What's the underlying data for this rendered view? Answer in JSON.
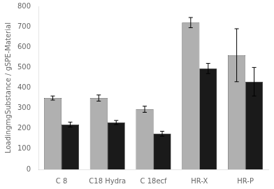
{
  "chart_data": {
    "type": "bar",
    "categories": [
      "C 8",
      "C18 Hydra",
      "C 18ecf",
      "HR-X",
      "HR-P"
    ],
    "series": [
      {
        "color": "#b0b0b0",
        "values": [
          350,
          350,
          295,
          720,
          560
        ],
        "errors": [
          10,
          15,
          15,
          25,
          130
        ]
      },
      {
        "color": "#1a1a1a",
        "values": [
          220,
          230,
          175,
          495,
          430
        ],
        "errors": [
          12,
          10,
          12,
          25,
          70
        ]
      }
    ],
    "ylabel": "LoadingmgSubstance / gSPE-Material",
    "ylim": [
      0,
      800
    ],
    "yticks": [
      0,
      100,
      200,
      300,
      400,
      500,
      600,
      700,
      800
    ],
    "grid": false
  }
}
